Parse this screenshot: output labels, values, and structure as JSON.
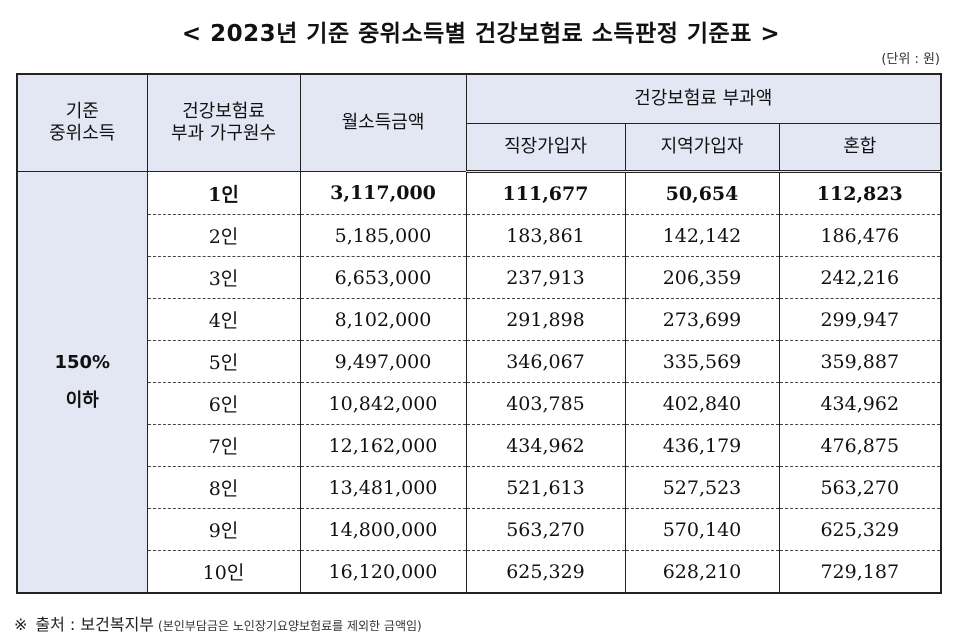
{
  "title": "< 2023년 기준 중위소득별 건강보험료 소득판정 기준표 >",
  "unit": "(단위 : 원)",
  "headers": {
    "median_income": "기준\n중위소득",
    "household": "건강보험료\n부과 가구원수",
    "monthly_income": "월소득금액",
    "premium": "건강보험료 부과액",
    "workplace": "직장가입자",
    "regional": "지역가입자",
    "mixed": "혼합"
  },
  "group_label": "150%\n이하",
  "rows": [
    {
      "household": "1인",
      "income": "3,117,000",
      "workplace": "111,677",
      "regional": "50,654",
      "mixed": "112,823"
    },
    {
      "household": "2인",
      "income": "5,185,000",
      "workplace": "183,861",
      "regional": "142,142",
      "mixed": "186,476"
    },
    {
      "household": "3인",
      "income": "6,653,000",
      "workplace": "237,913",
      "regional": "206,359",
      "mixed": "242,216"
    },
    {
      "household": "4인",
      "income": "8,102,000",
      "workplace": "291,898",
      "regional": "273,699",
      "mixed": "299,947"
    },
    {
      "household": "5인",
      "income": "9,497,000",
      "workplace": "346,067",
      "regional": "335,569",
      "mixed": "359,887"
    },
    {
      "household": "6인",
      "income": "10,842,000",
      "workplace": "403,785",
      "regional": "402,840",
      "mixed": "434,962"
    },
    {
      "household": "7인",
      "income": "12,162,000",
      "workplace": "434,962",
      "regional": "436,179",
      "mixed": "476,875"
    },
    {
      "household": "8인",
      "income": "13,481,000",
      "workplace": "521,613",
      "regional": "527,523",
      "mixed": "563,270"
    },
    {
      "household": "9인",
      "income": "14,800,000",
      "workplace": "563,270",
      "regional": "570,140",
      "mixed": "625,329"
    },
    {
      "household": "10인",
      "income": "16,120,000",
      "workplace": "625,329",
      "regional": "628,210",
      "mixed": "729,187"
    }
  ],
  "footnote": {
    "mark": "※",
    "source": "출처 : 보건복지부",
    "note": "(본인부담금은 노인장기요양보험료를 제외한 금액임)"
  }
}
